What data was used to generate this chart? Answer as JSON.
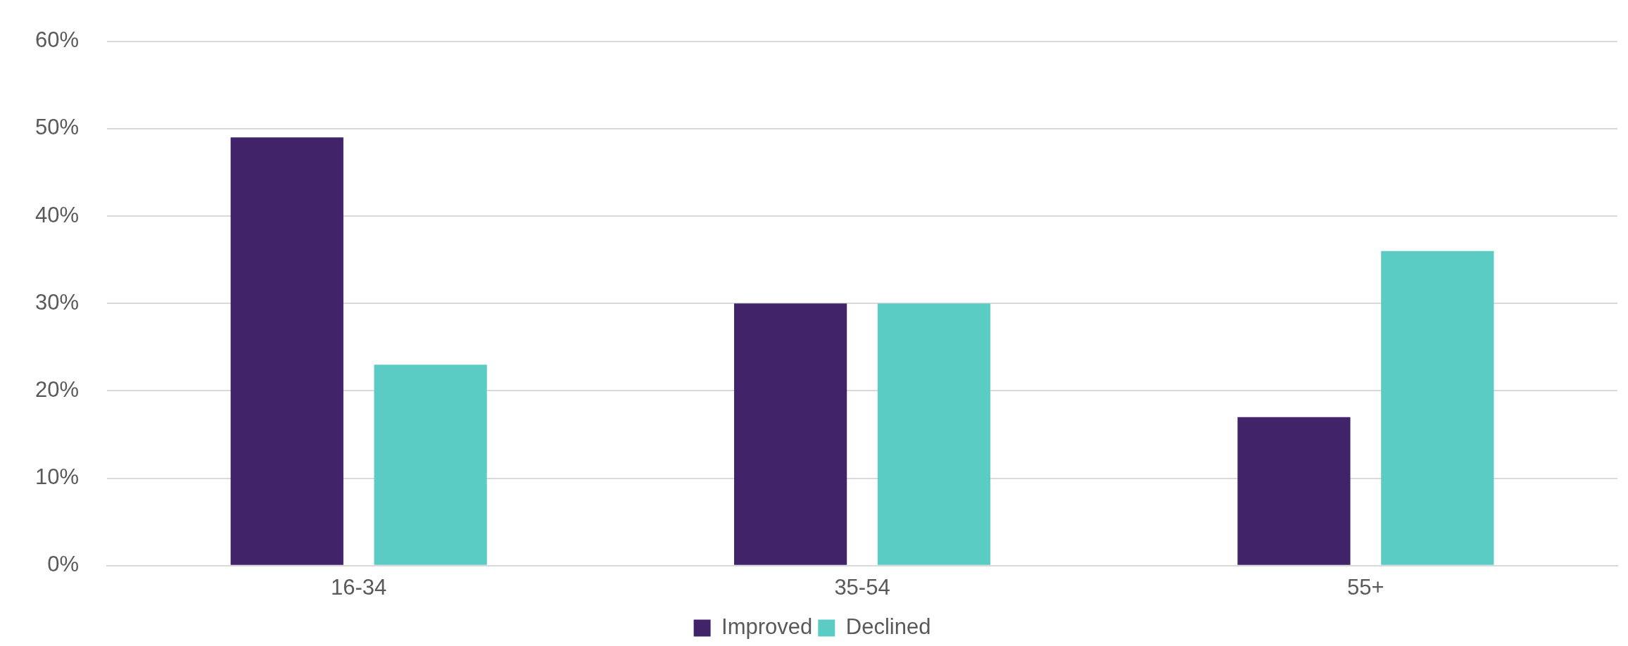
{
  "chart_data": {
    "type": "bar",
    "categories": [
      "16-34",
      "35-54",
      "55+"
    ],
    "series": [
      {
        "name": "Improved",
        "color": "#41236a",
        "values": [
          49,
          30,
          17
        ]
      },
      {
        "name": "Declined",
        "color": "#5bccc4",
        "values": [
          23,
          30,
          36
        ]
      }
    ],
    "ylim": [
      0,
      60
    ],
    "yticks": [
      {
        "value": 0,
        "label": "0%"
      },
      {
        "value": 10,
        "label": "10%"
      },
      {
        "value": 20,
        "label": "20%"
      },
      {
        "value": 30,
        "label": "30%"
      },
      {
        "value": 40,
        "label": "40%"
      },
      {
        "value": 50,
        "label": "50%"
      },
      {
        "value": 60,
        "label": "60%"
      }
    ],
    "grid": "y",
    "legend": "bottom"
  }
}
